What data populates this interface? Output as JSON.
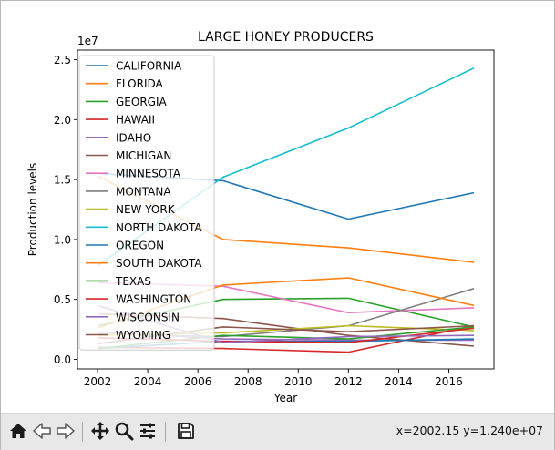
{
  "chart_data": {
    "type": "line",
    "title": "LARGE HONEY PRODUCERS",
    "xlabel": "Year",
    "ylabel": "Production levels",
    "y_scale_label": "1e7",
    "xlim": [
      2001.2,
      2017.8
    ],
    "ylim": [
      -0.08,
      2.58
    ],
    "x_ticks": [
      2002,
      2004,
      2006,
      2008,
      2010,
      2012,
      2014,
      2016
    ],
    "y_ticks": [
      0.0,
      0.5,
      1.0,
      1.5,
      2.0,
      2.5
    ],
    "y_tick_labels": [
      "0.0",
      "0.5",
      "1.0",
      "1.5",
      "2.0",
      "2.5"
    ],
    "grid": false,
    "legend_position": "upper-left",
    "x": [
      2002,
      2007,
      2012,
      2017
    ],
    "series": [
      {
        "name": "CALIFORNIA",
        "color": "#1f77b4",
        "values": [
          1.55,
          1.49,
          1.17,
          1.39
        ]
      },
      {
        "name": "FLORIDA",
        "color": "#ff7f0e",
        "values": [
          1.53,
          1.0,
          0.93,
          0.81
        ]
      },
      {
        "name": "GEORGIA",
        "color": "#2ca02c",
        "values": [
          0.28,
          0.5,
          0.51,
          0.27
        ]
      },
      {
        "name": "HAWAII",
        "color": "#d62728",
        "values": [
          0.1,
          0.09,
          0.06,
          0.28
        ]
      },
      {
        "name": "IDAHO",
        "color": "#9467bd",
        "values": [
          0.23,
          0.17,
          0.16,
          0.16
        ]
      },
      {
        "name": "MICHIGAN",
        "color": "#8c564b",
        "values": [
          0.38,
          0.34,
          0.2,
          0.11
        ]
      },
      {
        "name": "MINNESOTA",
        "color": "#e377c2",
        "values": [
          0.64,
          0.61,
          0.39,
          0.43
        ]
      },
      {
        "name": "MONTANA",
        "color": "#7f7f7f",
        "values": [
          0.21,
          0.19,
          0.28,
          0.59
        ]
      },
      {
        "name": "NEW YORK",
        "color": "#bcbd22",
        "values": [
          0.2,
          0.22,
          0.28,
          0.24
        ]
      },
      {
        "name": "NORTH DAKOTA",
        "color": "#17becf",
        "values": [
          0.78,
          1.52,
          1.93,
          2.43
        ]
      },
      {
        "name": "OREGON",
        "color": "#1f77b4",
        "values": [
          0.09,
          0.15,
          0.15,
          0.17
        ]
      },
      {
        "name": "SOUTH DAKOTA",
        "color": "#ff7f0e",
        "values": [
          0.26,
          0.62,
          0.68,
          0.45
        ]
      },
      {
        "name": "TEXAS",
        "color": "#2ca02c",
        "values": [
          0.09,
          0.2,
          0.17,
          0.27
        ]
      },
      {
        "name": "WASHINGTON",
        "color": "#d62728",
        "values": [
          0.18,
          0.15,
          0.14,
          0.26
        ]
      },
      {
        "name": "WISCONSIN",
        "color": "#9467bd",
        "values": [
          0.45,
          0.14,
          0.19,
          0.2
        ]
      },
      {
        "name": "WYOMING",
        "color": "#8c564b",
        "values": [
          0.13,
          0.27,
          0.23,
          0.28
        ]
      }
    ]
  },
  "toolbar": {
    "buttons": [
      {
        "name": "home-button",
        "icon": "home-icon"
      },
      {
        "name": "back-button",
        "icon": "arrow-left-icon"
      },
      {
        "name": "forward-button",
        "icon": "arrow-right-icon"
      },
      {
        "name": "pan-button",
        "icon": "move-icon"
      },
      {
        "name": "zoom-button",
        "icon": "magnifier-icon"
      },
      {
        "name": "configure-subplots-button",
        "icon": "sliders-icon"
      },
      {
        "name": "save-button",
        "icon": "floppy-disk-icon"
      }
    ],
    "coords_text": "x=2002.15 y=1.240e+07"
  }
}
